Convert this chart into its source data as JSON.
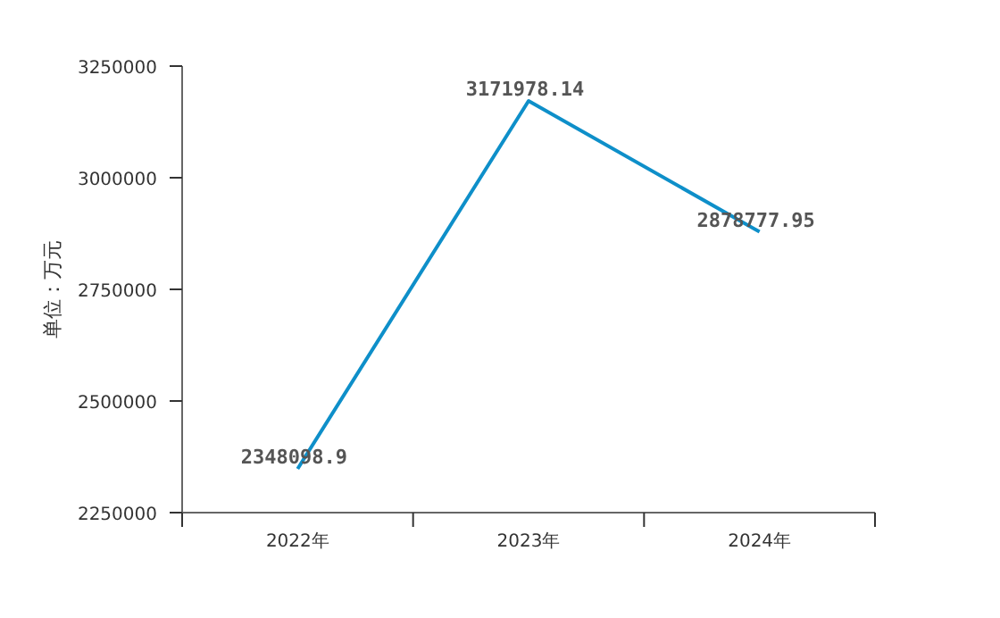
{
  "chart_data": {
    "type": "line",
    "ylabel": "单位：万元",
    "categories": [
      "2022年",
      "2023年",
      "2024年"
    ],
    "series": [
      {
        "color": "#0e8fc9",
        "values": [
          2348098.9,
          3171978.14,
          2878777.95
        ]
      }
    ],
    "ylim": [
      2250000,
      3250000
    ],
    "yticks": [
      2250000,
      2500000,
      2750000,
      3000000,
      3250000
    ],
    "data_labels": true
  }
}
